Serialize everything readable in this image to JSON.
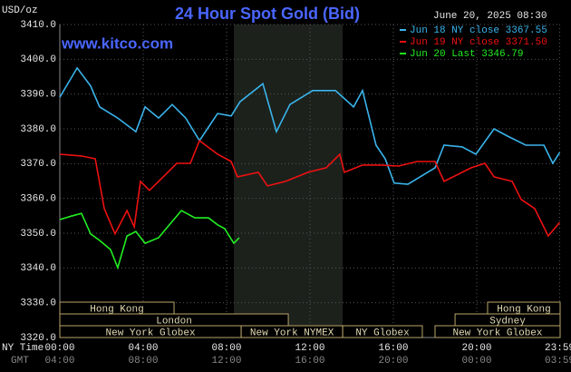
{
  "chart_data": {
    "type": "line",
    "title": "24 Hour Spot Gold (Bid)",
    "unit_label": "USD/oz",
    "timestamp": "June 20, 2025 08:30",
    "site": "www.kitco.com",
    "x_row_labels": [
      "NY Time",
      "GMT"
    ],
    "xlim": [
      0,
      24
    ],
    "xticks": [
      {
        "value": 0,
        "label": "00:00"
      },
      {
        "value": 4,
        "label": "04:00"
      },
      {
        "value": 8,
        "label": "08:00"
      },
      {
        "value": 12,
        "label": "12:00"
      },
      {
        "value": 16,
        "label": "16:00"
      },
      {
        "value": 20,
        "label": "20:00"
      },
      {
        "value": 23.98,
        "label": "23:59"
      }
    ],
    "gmt_tick_labels": [
      "04:00",
      "08:00",
      "12:00",
      "16:00",
      "20:00",
      "00:00",
      "03:59"
    ],
    "ylim": [
      3320,
      3410
    ],
    "yticks": [
      {
        "value": 3320,
        "label": "3320.0"
      },
      {
        "value": 3330,
        "label": "3330.0"
      },
      {
        "value": 3340,
        "label": "3340.0"
      },
      {
        "value": 3350,
        "label": "3350.0"
      },
      {
        "value": 3360,
        "label": "3360.0"
      },
      {
        "value": 3370,
        "label": "3370.0"
      },
      {
        "value": 3380,
        "label": "3380.0"
      },
      {
        "value": 3390,
        "label": "3390.0"
      },
      {
        "value": 3400,
        "label": "3400.0"
      },
      {
        "value": 3410,
        "label": "3410.0"
      }
    ],
    "grid": true,
    "shade": [
      8.35,
      13.57
    ],
    "series": [
      {
        "name": "Jun 18 NY close 3367.55",
        "color": "#3ab4ec",
        "x": [
          0,
          0.83,
          1.48,
          1.91,
          2.78,
          3.65,
          4.09,
          4.74,
          5.39,
          6.04,
          6.7,
          7.57,
          8.22,
          8.65,
          9.74,
          10.39,
          11.04,
          12.13,
          13.22,
          14.09,
          14.52,
          15.17,
          15.61,
          16.04,
          16.7,
          18.0,
          18.43,
          19.3,
          19.96,
          20.83,
          21.48,
          22.35,
          23.22,
          23.65,
          23.98
        ],
        "values": [
          3389.1,
          3397.5,
          3392.3,
          3386.3,
          3383.1,
          3379.2,
          3386.3,
          3383.1,
          3387.0,
          3383.1,
          3376.6,
          3384.4,
          3383.7,
          3387.8,
          3393.0,
          3379.2,
          3387.0,
          3391.0,
          3391.0,
          3386.3,
          3391.0,
          3375.3,
          3371.4,
          3364.4,
          3364.1,
          3368.8,
          3375.3,
          3374.8,
          3372.7,
          3380.0,
          3377.9,
          3375.3,
          3375.3,
          3370.1,
          3373.2
        ]
      },
      {
        "name": "Jun 19 NY close 3371.50",
        "color": "#ee1111",
        "x": [
          0,
          1.04,
          1.7,
          2.13,
          2.65,
          3.22,
          3.57,
          3.87,
          4.3,
          4.96,
          5.61,
          6.26,
          6.7,
          7.57,
          8.22,
          8.52,
          9.52,
          9.96,
          10.83,
          11.91,
          12.78,
          13.43,
          13.65,
          14.52,
          15.39,
          16.26,
          17.13,
          18.0,
          18.43,
          19.3,
          19.74,
          20.39,
          20.83,
          21.7,
          22.13,
          22.78,
          23.43,
          23.98
        ],
        "values": [
          3372.7,
          3372.2,
          3371.4,
          3357.1,
          3349.8,
          3356.5,
          3351.8,
          3364.9,
          3362.3,
          3366.2,
          3370.1,
          3370.1,
          3376.6,
          3372.7,
          3370.6,
          3366.2,
          3367.5,
          3363.6,
          3364.9,
          3367.5,
          3368.8,
          3372.7,
          3367.5,
          3369.6,
          3369.6,
          3369.3,
          3370.6,
          3370.6,
          3364.9,
          3367.5,
          3368.8,
          3370.1,
          3366.2,
          3364.9,
          3359.7,
          3357.1,
          3349.2,
          3353.1
        ]
      },
      {
        "name": "Jun 20 Last 3346.79",
        "color": "#22ee22",
        "x": [
          0,
          0.61,
          1.04,
          1.48,
          1.91,
          2.43,
          2.78,
          3.22,
          3.65,
          4.09,
          4.74,
          5.17,
          5.83,
          6.48,
          7.13,
          7.57,
          7.91,
          8.35,
          8.61
        ],
        "values": [
          3353.9,
          3355.0,
          3355.7,
          3349.8,
          3347.9,
          3345.3,
          3340.1,
          3349.2,
          3350.5,
          3347.1,
          3348.7,
          3351.8,
          3356.5,
          3354.4,
          3354.4,
          3352.4,
          3351.3,
          3347.1,
          3348.7
        ]
      }
    ],
    "sessions": [
      {
        "label": "Hong Kong",
        "row": 0,
        "start": 0,
        "end": 5.48
      },
      {
        "label": "Hong Kong",
        "row": 0,
        "start": 20.52,
        "end": 24
      },
      {
        "label": "London",
        "row": 1,
        "start": 0,
        "end": 10.96
      },
      {
        "label": "Sydney",
        "row": 1,
        "start": 18.96,
        "end": 24
      },
      {
        "label": "New York Globex",
        "row": 2,
        "start": 0,
        "end": 8.7
      },
      {
        "label": "New York NYMEX",
        "row": 2,
        "start": 8.7,
        "end": 13.57
      },
      {
        "label": "NY Globex",
        "row": 2,
        "start": 13.57,
        "end": 17.39
      },
      {
        "label": "New York Globex",
        "row": 2,
        "start": 18.0,
        "end": 24
      }
    ]
  }
}
